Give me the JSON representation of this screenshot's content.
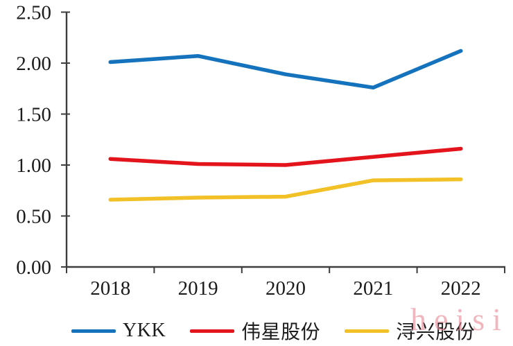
{
  "watermark_text": "heisi",
  "chart_data": {
    "type": "line",
    "title": "",
    "xlabel": "",
    "ylabel": "",
    "categories": [
      "2018",
      "2019",
      "2020",
      "2021",
      "2022"
    ],
    "series": [
      {
        "name": "YKK",
        "color": "#1573bd",
        "values": [
          2.01,
          2.07,
          1.89,
          1.76,
          2.12
        ]
      },
      {
        "name": "伟星股份",
        "color": "#e4141d",
        "values": [
          1.06,
          1.01,
          1.0,
          1.08,
          1.16
        ]
      },
      {
        "name": "浔兴股份",
        "color": "#f2c027",
        "values": [
          0.66,
          0.68,
          0.69,
          0.85,
          0.86
        ]
      }
    ],
    "ylim": [
      0,
      2.5
    ],
    "ytick_labels": [
      "0.00",
      "0.50",
      "1.00",
      "1.50",
      "2.00",
      "2.50"
    ],
    "ytick_values": [
      0,
      0.5,
      1,
      1.5,
      2,
      2.5
    ],
    "grid": false,
    "legend_position": "bottom",
    "axis_color": "#3d3d3d",
    "text_color": "#1b1b1b"
  }
}
